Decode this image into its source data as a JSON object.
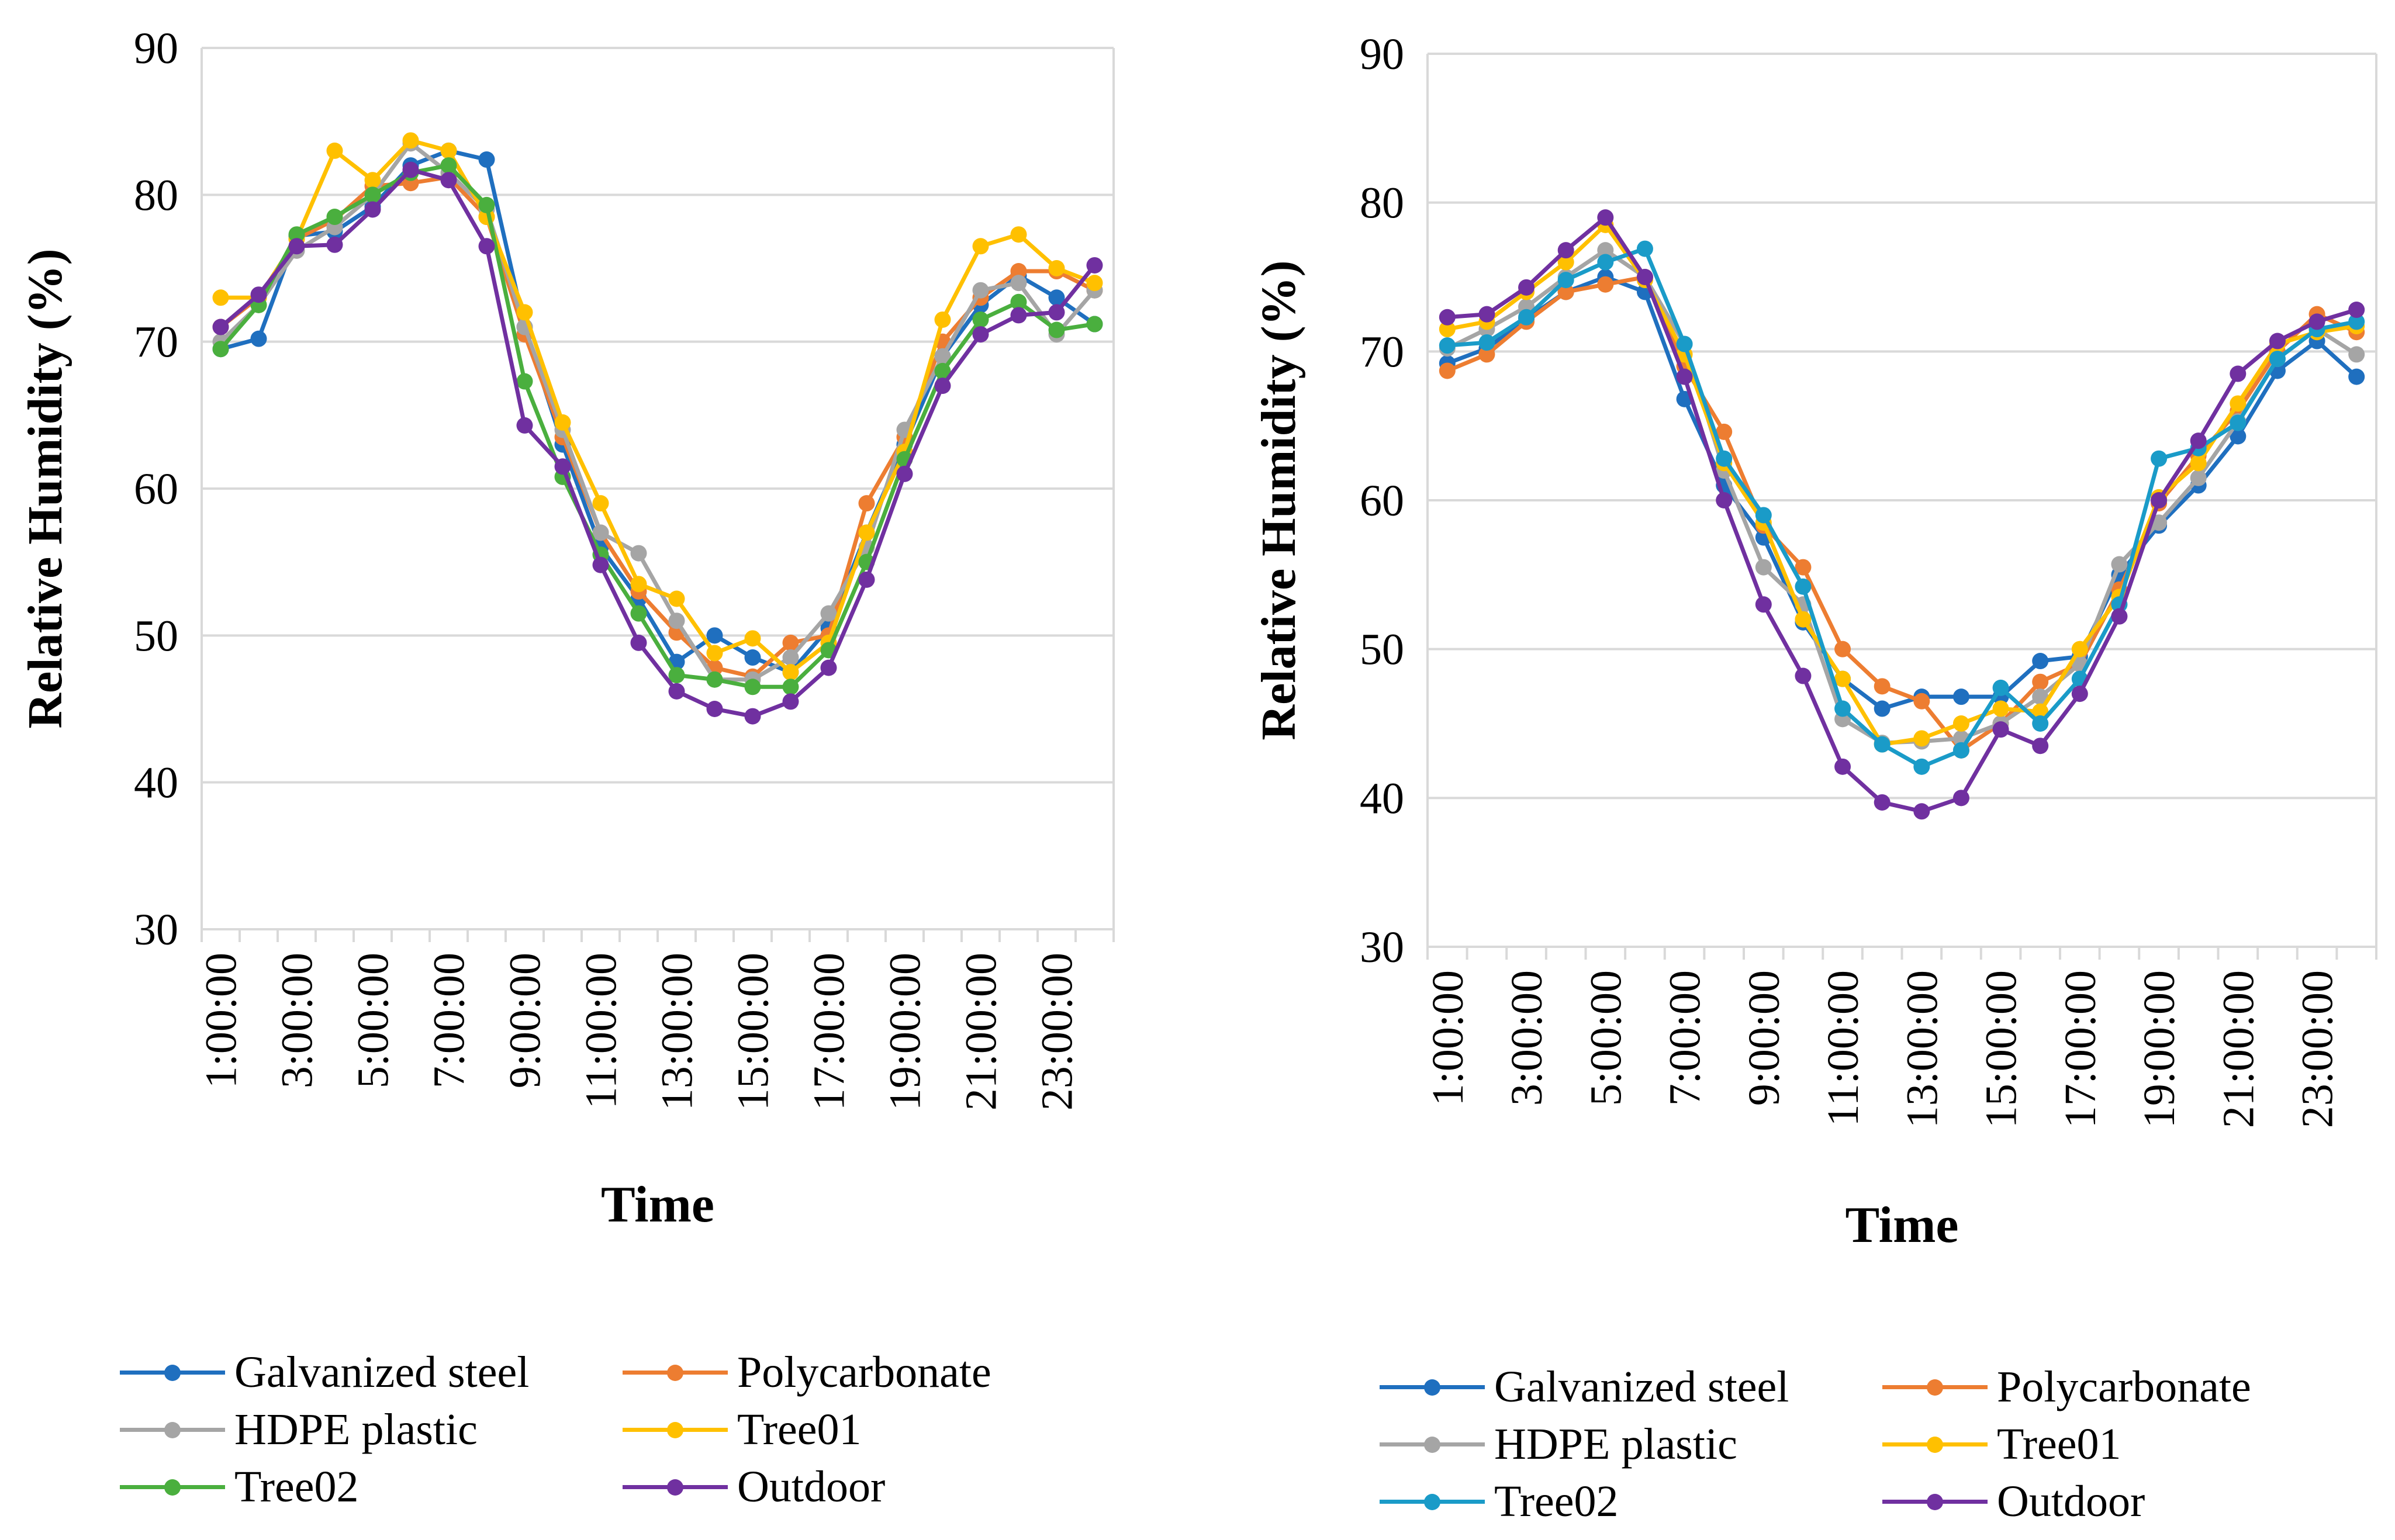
{
  "chart_data": [
    {
      "type": "line",
      "title": "",
      "xlabel": "Time",
      "ylabel": "Relative Humidity (%)",
      "ylim": [
        30,
        90
      ],
      "yticks": [
        "30",
        "40",
        "50",
        "60",
        "70",
        "80",
        "90"
      ],
      "xticks": [
        "1:00:00",
        "3:00:00",
        "5:00:00",
        "7:00:00",
        "9:00:00",
        "11:00:00",
        "13:00:00",
        "15:00:00",
        "17:00:00",
        "19:00:00",
        "21:00:00",
        "23:00:00"
      ],
      "x": [
        1,
        2,
        3,
        4,
        5,
        6,
        7,
        8,
        9,
        10,
        11,
        12,
        13,
        14,
        15,
        16,
        17,
        18,
        19,
        20,
        21,
        22,
        23,
        24
      ],
      "grid": true,
      "legend_position": "bottom",
      "series": [
        {
          "name": "Galvanized steel",
          "color": "#1f6fbf",
          "values": [
            69.5,
            70.2,
            77.2,
            77.5,
            79.2,
            82.0,
            83.0,
            82.4,
            71.0,
            63.0,
            56.0,
            52.5,
            48.2,
            50.0,
            48.5,
            47.5,
            50.5,
            57.0,
            63.0,
            69.0,
            72.5,
            74.5,
            73.0,
            71.2
          ]
        },
        {
          "name": "Polycarbonate",
          "color": "#ed7d31",
          "values": [
            71.0,
            73.0,
            77.0,
            78.3,
            80.6,
            80.8,
            81.2,
            78.5,
            70.5,
            63.5,
            57.0,
            53.0,
            50.2,
            47.8,
            47.2,
            49.5,
            50.0,
            59.0,
            63.5,
            70.0,
            73.0,
            74.8,
            74.8,
            73.5
          ]
        },
        {
          "name": "HDPE plastic",
          "color": "#a5a5a5",
          "values": [
            70.0,
            72.5,
            76.2,
            77.8,
            80.0,
            83.5,
            81.5,
            79.0,
            71.0,
            64.0,
            57.0,
            55.6,
            51.0,
            47.0,
            47.0,
            48.5,
            51.5,
            56.0,
            64.0,
            69.0,
            73.5,
            74.0,
            70.5,
            73.5
          ]
        },
        {
          "name": "Tree01",
          "color": "#ffc000",
          "values": [
            73.0,
            73.0,
            77.0,
            83.0,
            81.0,
            83.7,
            83.0,
            78.5,
            72.0,
            64.5,
            59.0,
            53.5,
            52.5,
            48.8,
            49.8,
            47.5,
            49.5,
            57.0,
            62.5,
            71.5,
            76.5,
            77.3,
            75.0,
            74.0
          ]
        },
        {
          "name": "Tree02",
          "color": "#4aaf3e",
          "values": [
            69.5,
            72.5,
            77.3,
            78.5,
            80.0,
            81.5,
            82.0,
            79.3,
            67.3,
            60.8,
            55.5,
            51.5,
            47.3,
            47.0,
            46.5,
            46.5,
            49.0,
            55.0,
            62.0,
            68.0,
            71.5,
            72.7,
            70.8,
            71.2
          ]
        },
        {
          "name": "Outdoor",
          "color": "#7030a0",
          "values": [
            71.0,
            73.2,
            76.5,
            76.6,
            79.0,
            81.7,
            81.0,
            76.5,
            64.3,
            61.5,
            54.8,
            49.5,
            46.2,
            45.0,
            44.5,
            45.5,
            47.8,
            53.8,
            61.0,
            67.0,
            70.5,
            71.8,
            72.0,
            75.2
          ]
        }
      ]
    },
    {
      "type": "line",
      "title": "",
      "xlabel": "Time",
      "ylabel": "Relative Humidity (%)",
      "ylim": [
        30,
        90
      ],
      "yticks": [
        "30",
        "40",
        "50",
        "60",
        "70",
        "80",
        "90"
      ],
      "xticks": [
        "1:00:00",
        "3:00:00",
        "5:00:00",
        "7:00:00",
        "9:00:00",
        "11:00:00",
        "13:00:00",
        "15:00:00",
        "17:00:00",
        "19:00:00",
        "21:00:00",
        "23:00:00"
      ],
      "x": [
        1,
        2,
        3,
        4,
        5,
        6,
        7,
        8,
        9,
        10,
        11,
        12,
        13,
        14,
        15,
        16,
        17,
        18,
        19,
        20,
        21,
        22,
        23,
        24
      ],
      "grid": true,
      "legend_position": "bottom",
      "series": [
        {
          "name": "Galvanized steel",
          "color": "#1f6fbf",
          "values": [
            69.2,
            70.2,
            72.2,
            74.0,
            75.0,
            74.0,
            66.8,
            61.0,
            57.5,
            51.8,
            48.0,
            46.0,
            46.8,
            46.8,
            46.8,
            49.2,
            49.5,
            55.0,
            58.3,
            61.0,
            64.3,
            68.7,
            70.7,
            68.3
          ]
        },
        {
          "name": "Polycarbonate",
          "color": "#ed7d31",
          "values": [
            68.7,
            69.8,
            72.0,
            74.0,
            74.5,
            75.0,
            69.0,
            64.6,
            58.3,
            55.5,
            50.0,
            47.5,
            46.5,
            43.2,
            45.0,
            47.8,
            49.0,
            54.0,
            59.8,
            63.0,
            66.0,
            70.0,
            72.5,
            71.3
          ]
        },
        {
          "name": "HDPE plastic",
          "color": "#a5a5a5",
          "values": [
            70.2,
            71.5,
            73.0,
            75.0,
            76.8,
            75.0,
            70.5,
            62.0,
            55.5,
            53.0,
            45.3,
            43.7,
            43.8,
            44.0,
            45.0,
            46.8,
            49.0,
            55.7,
            58.5,
            61.5,
            65.3,
            69.5,
            71.5,
            69.8
          ]
        },
        {
          "name": "Tree01",
          "color": "#ffc000",
          "values": [
            71.5,
            72.0,
            74.0,
            76.0,
            78.5,
            74.8,
            69.8,
            62.5,
            58.5,
            52.0,
            48.0,
            43.6,
            44.0,
            45.0,
            46.0,
            45.8,
            50.0,
            53.5,
            60.2,
            62.5,
            66.5,
            70.5,
            71.3,
            71.7
          ]
        },
        {
          "name": "Tree02",
          "color": "#1a9bc8",
          "values": [
            70.4,
            70.6,
            72.3,
            74.8,
            76.0,
            76.9,
            70.5,
            62.8,
            59.0,
            54.2,
            46.0,
            43.6,
            42.1,
            43.2,
            47.4,
            45.0,
            48.0,
            53.0,
            62.8,
            63.5,
            65.2,
            69.5,
            71.5,
            72.0
          ]
        },
        {
          "name": "Outdoor",
          "color": "#7030a0",
          "values": [
            72.3,
            72.5,
            74.3,
            76.8,
            79.0,
            75.0,
            68.3,
            60.0,
            53.0,
            48.2,
            42.1,
            39.7,
            39.1,
            40.0,
            44.6,
            43.5,
            47.0,
            52.2,
            60.0,
            64.0,
            68.5,
            70.7,
            72.0,
            72.8
          ]
        }
      ]
    }
  ]
}
